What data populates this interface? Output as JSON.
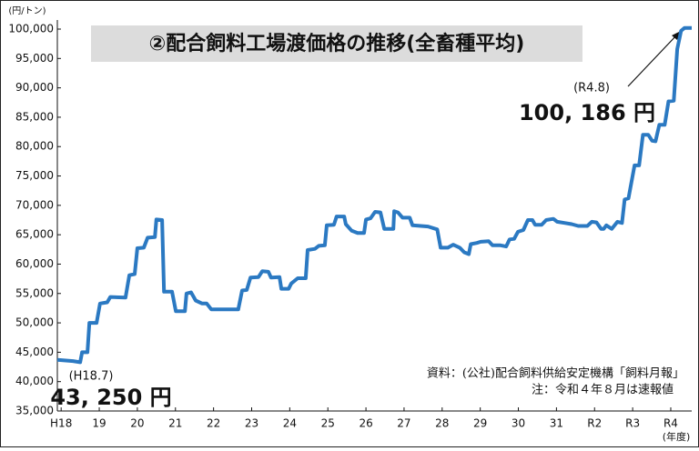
{
  "chart_data": {
    "type": "line",
    "title": "②配合飼料工場渡価格の推移(全畜種平均)",
    "y_unit": "(円/トン)",
    "x_unit": "(年度)",
    "annotations": {
      "end_date": "(R4.8)",
      "end_value": "100, 186 円",
      "start_date": "(H18.7)",
      "start_value": "43, 250 円"
    },
    "source": [
      "資料：(公社)配合飼料供給安定機構「飼料月報」",
      "注：令和４年８月は速報値"
    ],
    "color": "#2b79c2",
    "xlim": [
      17.9,
      34.55
    ],
    "ylim": [
      35000,
      100000
    ],
    "xticks": [
      {
        "value": 18,
        "label": "H18"
      },
      19,
      20,
      21,
      22,
      23,
      24,
      25,
      26,
      27,
      28,
      29,
      30,
      31,
      {
        "value": 32,
        "label": "R2"
      },
      {
        "value": 33,
        "label": "R3"
      },
      {
        "value": 34,
        "label": "R4"
      }
    ],
    "yticks": [
      {
        "value": 35000,
        "label": "35,000"
      },
      {
        "value": 40000,
        "label": "40,000"
      },
      {
        "value": 45000,
        "label": "45,000"
      },
      {
        "value": 50000,
        "label": "50,000"
      },
      {
        "value": 55000,
        "label": "55,000"
      },
      {
        "value": 60000,
        "label": "60,000"
      },
      {
        "value": 65000,
        "label": "65,000"
      },
      {
        "value": 70000,
        "label": "70,000"
      },
      {
        "value": 75000,
        "label": "75,000"
      },
      {
        "value": 80000,
        "label": "80,000"
      },
      {
        "value": 85000,
        "label": "85,000"
      },
      {
        "value": 90000,
        "label": "90,000"
      },
      {
        "value": 95000,
        "label": "95,000"
      },
      {
        "value": 100000,
        "label": "100,000"
      }
    ],
    "x": [
      17.9,
      18.31,
      18.5,
      18.55,
      18.69,
      18.74,
      18.93,
      19.02,
      19.21,
      19.29,
      19.69,
      19.79,
      19.93,
      20.0,
      20.17,
      20.27,
      20.46,
      20.5,
      20.65,
      20.7,
      20.91,
      21.01,
      21.25,
      21.29,
      21.41,
      21.53,
      21.7,
      21.82,
      21.94,
      22.65,
      22.75,
      22.87,
      22.97,
      23.18,
      23.28,
      23.44,
      23.51,
      23.73,
      23.78,
      23.97,
      24.04,
      24.21,
      24.42,
      24.47,
      24.66,
      24.76,
      24.92,
      24.97,
      25.16,
      25.23,
      25.43,
      25.47,
      25.62,
      25.78,
      25.95,
      26.0,
      26.12,
      26.24,
      26.38,
      26.48,
      26.72,
      26.74,
      26.84,
      26.96,
      27.15,
      27.22,
      27.63,
      27.87,
      27.96,
      28.15,
      28.29,
      28.46,
      28.58,
      28.7,
      28.75,
      28.91,
      29.01,
      29.22,
      29.32,
      29.53,
      29.68,
      29.77,
      29.89,
      29.99,
      30.13,
      30.25,
      30.37,
      30.44,
      30.61,
      30.73,
      30.92,
      31.02,
      31.21,
      31.4,
      31.57,
      31.81,
      31.93,
      32.05,
      32.17,
      32.24,
      32.31,
      32.45,
      32.6,
      32.72,
      32.79,
      32.89,
      33.05,
      33.17,
      33.27,
      33.41,
      33.51,
      33.6,
      33.7,
      33.84,
      33.94,
      34.08,
      34.17,
      34.27,
      34.36,
      34.55
    ],
    "values": [
      43700,
      43500,
      43300,
      45000,
      45000,
      50000,
      50000,
      53300,
      53500,
      54400,
      54300,
      58100,
      58300,
      62700,
      62800,
      64500,
      64600,
      67600,
      67500,
      55300,
      55300,
      52000,
      52000,
      55000,
      55200,
      53800,
      53300,
      53300,
      52300,
      52300,
      55500,
      55600,
      57700,
      57800,
      58800,
      58700,
      57700,
      57800,
      55800,
      55800,
      56700,
      57600,
      57600,
      62400,
      62600,
      63100,
      63200,
      66600,
      66700,
      68100,
      68100,
      66800,
      65700,
      65300,
      65300,
      67600,
      67800,
      68900,
      68800,
      66000,
      66000,
      69000,
      68800,
      67900,
      67900,
      66600,
      66400,
      65900,
      62800,
      62800,
      63300,
      62800,
      62000,
      61700,
      63400,
      63600,
      63800,
      63900,
      63200,
      63200,
      63000,
      64200,
      64300,
      65500,
      65800,
      67500,
      67500,
      66700,
      66700,
      67500,
      67700,
      67200,
      67000,
      66800,
      66500,
      66500,
      67200,
      67100,
      66000,
      66000,
      66600,
      66000,
      67200,
      67000,
      71000,
      71200,
      76800,
      76800,
      82000,
      82000,
      81000,
      80900,
      83700,
      83700,
      87700,
      87800,
      96600,
      99700,
      100186,
      100186
    ]
  }
}
